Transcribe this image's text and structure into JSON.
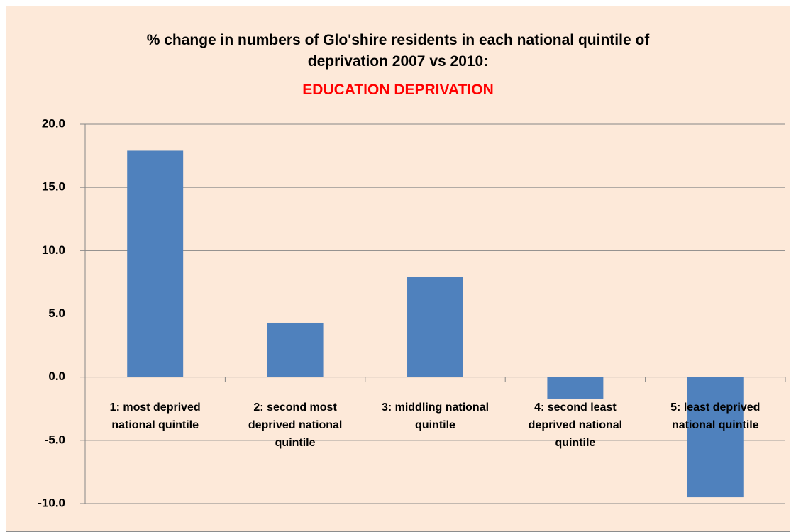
{
  "chart_data": {
    "type": "bar",
    "title": "% change in numbers of Glo'shire residents in each national quintile of deprivation 2007 vs 2010:",
    "subtitle": "EDUCATION DEPRIVATION",
    "categories": [
      "1: most deprived national quintile",
      "2: second most deprived national quintile",
      "3: middling national quintile",
      "4: second least deprived national quintile",
      "5: least deprived national quintile"
    ],
    "values": [
      17.9,
      4.3,
      7.9,
      -1.7,
      -9.5
    ],
    "color": "#4f81bd",
    "ylim": [
      -10,
      20
    ],
    "yticks": [
      {
        "value": -10,
        "label": "-10.0"
      },
      {
        "value": -5,
        "label": "-5.0"
      },
      {
        "value": 0,
        "label": "0.0"
      },
      {
        "value": 5,
        "label": "5.0"
      },
      {
        "value": 10,
        "label": "10.0"
      },
      {
        "value": 15,
        "label": "15.0"
      },
      {
        "value": 20,
        "label": "20.0"
      }
    ],
    "grid": true
  }
}
